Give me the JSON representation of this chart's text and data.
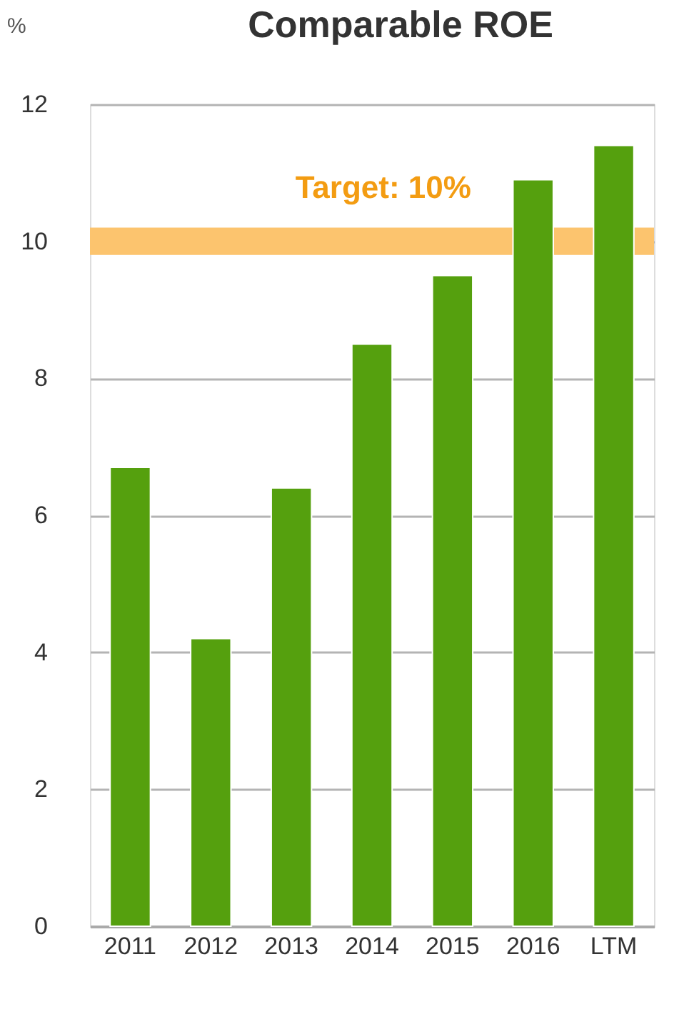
{
  "chart_data": {
    "type": "bar",
    "title": "Comparable ROE",
    "ylabel": "%",
    "categories": [
      "2011",
      "2012",
      "2013",
      "2014",
      "2015",
      "2016",
      "LTM"
    ],
    "series": [
      {
        "color": "#55a00e",
        "values": [
          6.7,
          4.2,
          6.4,
          8.5,
          9.5,
          10.9,
          11.4
        ]
      }
    ],
    "ylim": [
      0,
      12
    ],
    "yticks": [
      0,
      2,
      4,
      6,
      8,
      10,
      12
    ],
    "grid": "y",
    "bands": [
      {
        "axis": "y",
        "from": 9.8,
        "to": 10.2,
        "label": "Target: 10%",
        "color": "#fcc46e"
      }
    ]
  }
}
